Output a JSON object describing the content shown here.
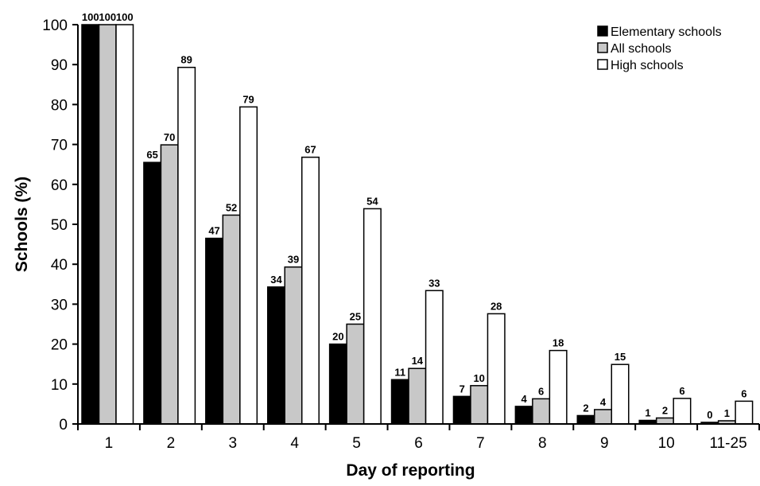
{
  "chart_data": {
    "type": "bar",
    "title": "",
    "xlabel": "Day of reporting",
    "ylabel": "Schools (%)",
    "ylim": [
      0,
      100
    ],
    "yticks": [
      0,
      10,
      20,
      30,
      40,
      50,
      60,
      70,
      80,
      90,
      100
    ],
    "categories": [
      "1",
      "2",
      "3",
      "4",
      "5",
      "6",
      "7",
      "8",
      "9",
      "10",
      "11-25"
    ],
    "series": [
      {
        "name": "Elementary schools",
        "color": "#000000",
        "values": [
          100,
          65,
          47,
          34,
          20,
          11,
          7,
          4,
          2,
          1,
          0
        ],
        "plotted": [
          100,
          65.5,
          46.5,
          34.3,
          20.0,
          11.1,
          6.9,
          4.4,
          2.1,
          0.9,
          0.4
        ]
      },
      {
        "name": "All schools",
        "color": "#c8c8c8",
        "values": [
          100,
          70,
          52,
          39,
          25,
          14,
          10,
          6,
          4,
          2,
          1
        ],
        "plotted": [
          100,
          69.9,
          52.3,
          39.3,
          25.0,
          13.9,
          9.6,
          6.3,
          3.6,
          1.5,
          0.8
        ]
      },
      {
        "name": "High schools",
        "color": "#ffffff",
        "values": [
          100,
          89,
          79,
          67,
          54,
          33,
          28,
          18,
          15,
          6,
          6
        ],
        "plotted": [
          100,
          89.3,
          79.4,
          66.8,
          53.9,
          33.4,
          27.6,
          18.4,
          14.9,
          6.4,
          5.7
        ]
      }
    ],
    "legend_position": "top-right",
    "grid": false
  }
}
